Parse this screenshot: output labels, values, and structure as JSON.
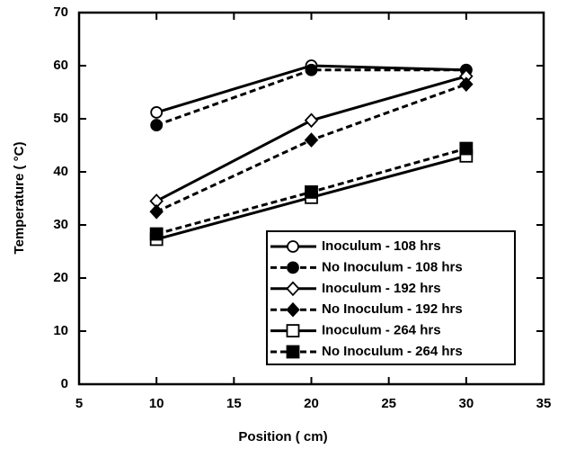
{
  "chart_data": {
    "type": "line",
    "x_label": "Position ( cm)",
    "y_label": "Temperature ( °C)",
    "x": [
      10,
      20,
      30
    ],
    "xlim": [
      5,
      35
    ],
    "xticks": [
      5,
      10,
      15,
      20,
      25,
      30,
      35
    ],
    "ylim": [
      0,
      70
    ],
    "yticks": [
      0,
      10,
      20,
      30,
      40,
      50,
      60,
      70
    ],
    "legend": "lower-right",
    "series": [
      {
        "name": "Inoculum - 108 hrs",
        "color": "#000000",
        "line_style": "solid",
        "marker": "circle",
        "filled": false,
        "values": [
          51.2,
          60,
          59.2
        ]
      },
      {
        "name": "No Inoculum - 108 hrs",
        "color": "#000000",
        "line_style": "dashed",
        "marker": "circle",
        "filled": true,
        "values": [
          48.8,
          59.2,
          59.2
        ]
      },
      {
        "name": "Inoculum - 192 hrs",
        "color": "#000000",
        "line_style": "solid",
        "marker": "diamond",
        "filled": false,
        "values": [
          34.5,
          49.7,
          58
        ]
      },
      {
        "name": "No Inoculum - 192 hrs",
        "color": "#000000",
        "line_style": "dashed",
        "marker": "diamond",
        "filled": true,
        "values": [
          32.5,
          46,
          56.5
        ]
      },
      {
        "name": "Inoculum - 264 hrs",
        "color": "#000000",
        "line_style": "solid",
        "marker": "square",
        "filled": false,
        "values": [
          27.3,
          35.2,
          43
        ]
      },
      {
        "name": "No Inoculum - 264 hrs",
        "color": "#000000",
        "line_style": "dashed",
        "marker": "square",
        "filled": true,
        "values": [
          28.3,
          36.2,
          44.4
        ]
      }
    ]
  }
}
